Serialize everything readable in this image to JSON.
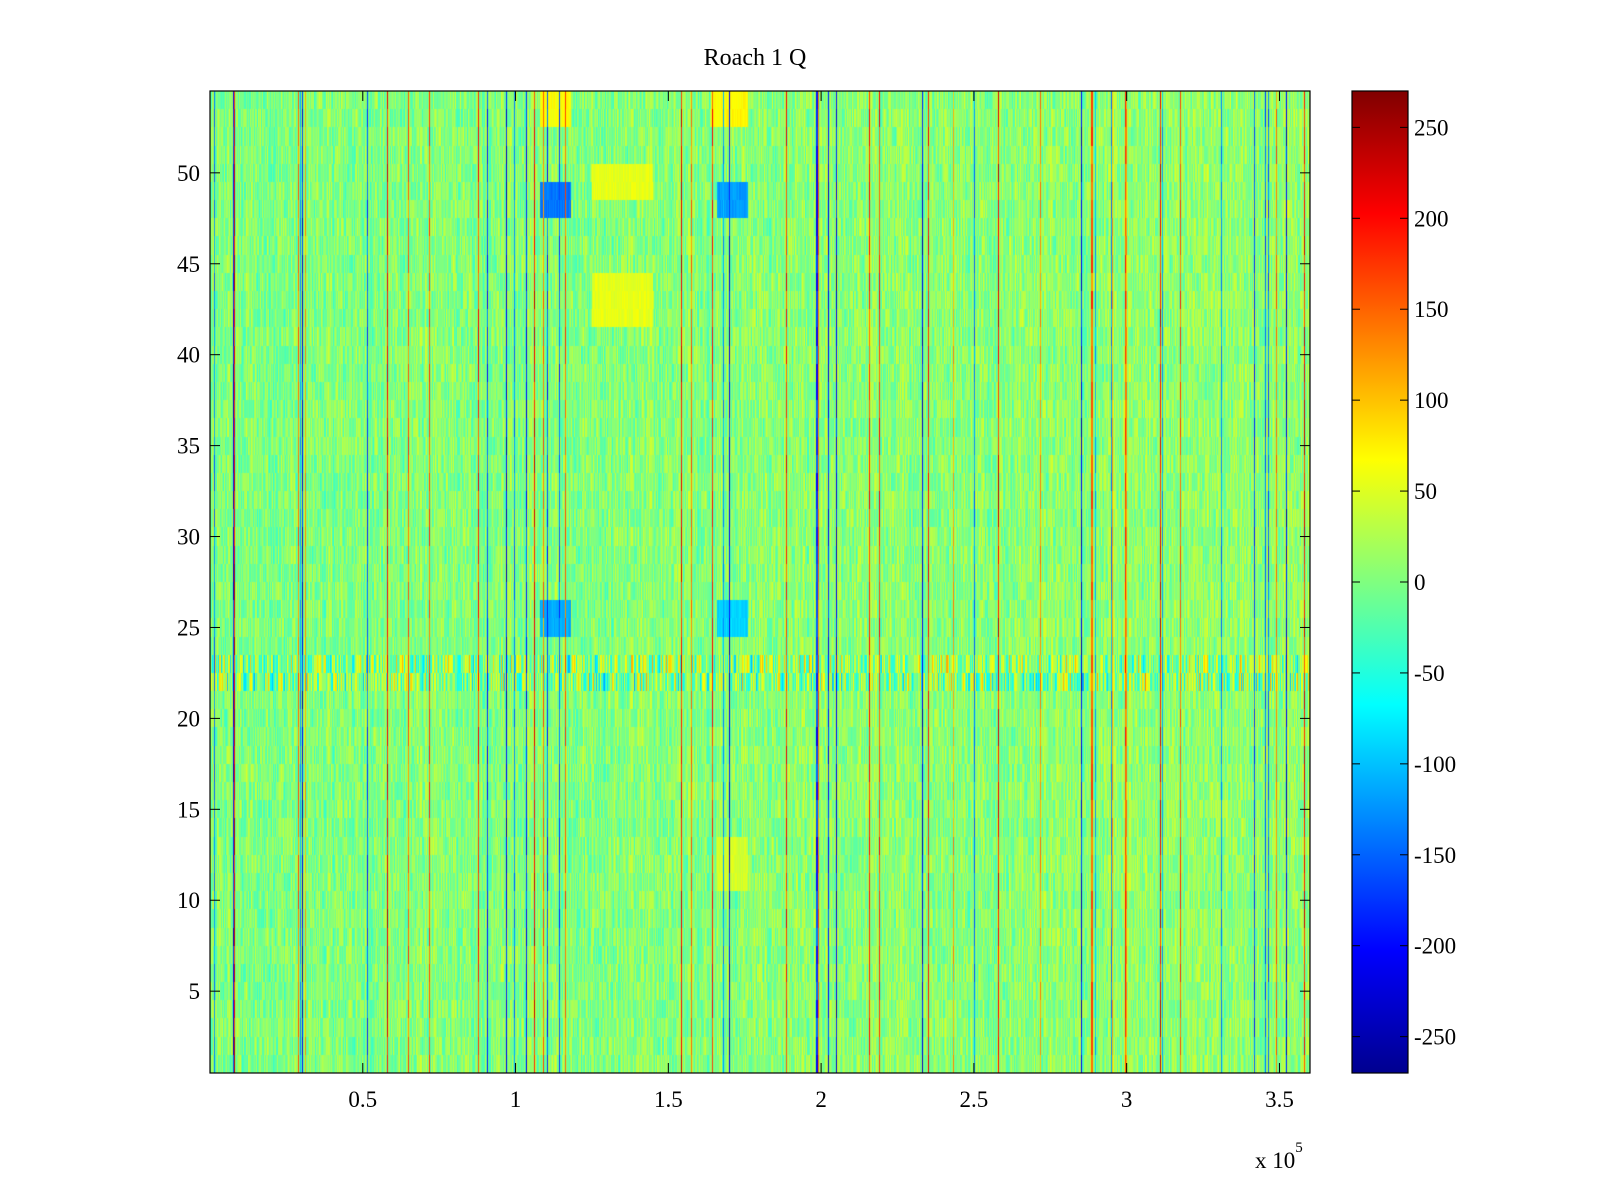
{
  "chart_data": {
    "type": "heatmap",
    "title": "Roach 1 Q",
    "xlabel": "",
    "ylabel": "",
    "x_exponent_label": {
      "base": "x 10",
      "exponent": "5"
    },
    "x_range": [
      0,
      360000
    ],
    "y_range": [
      0.5,
      54.5
    ],
    "rows": 54,
    "x_ticks": [
      {
        "value": 50000,
        "label": "0.5"
      },
      {
        "value": 100000,
        "label": "1"
      },
      {
        "value": 150000,
        "label": "1.5"
      },
      {
        "value": 200000,
        "label": "2"
      },
      {
        "value": 250000,
        "label": "2.5"
      },
      {
        "value": 300000,
        "label": "3"
      },
      {
        "value": 350000,
        "label": "3.5"
      }
    ],
    "y_ticks": [
      {
        "value": 5,
        "label": "5"
      },
      {
        "value": 10,
        "label": "10"
      },
      {
        "value": 15,
        "label": "15"
      },
      {
        "value": 20,
        "label": "20"
      },
      {
        "value": 25,
        "label": "25"
      },
      {
        "value": 30,
        "label": "30"
      },
      {
        "value": 35,
        "label": "35"
      },
      {
        "value": 40,
        "label": "40"
      },
      {
        "value": 45,
        "label": "45"
      },
      {
        "value": 50,
        "label": "50"
      }
    ],
    "colorbar": {
      "colormap": "jet",
      "range": [
        -270,
        270
      ],
      "ticks": [
        {
          "value": 250,
          "label": "250"
        },
        {
          "value": 200,
          "label": "200"
        },
        {
          "value": 150,
          "label": "150"
        },
        {
          "value": 100,
          "label": "100"
        },
        {
          "value": 50,
          "label": "50"
        },
        {
          "value": 0,
          "label": "0"
        },
        {
          "value": -50,
          "label": "-50"
        },
        {
          "value": -100,
          "label": "-100"
        },
        {
          "value": -150,
          "label": "-150"
        },
        {
          "value": -200,
          "label": "-200"
        },
        {
          "value": -250,
          "label": "-250"
        }
      ]
    },
    "typical_value_range": [
      -40,
      40
    ],
    "positive_spike_columns_x": [
      8000,
      58000,
      106000,
      154000,
      236000,
      258000,
      311000,
      358000
    ],
    "negative_spike_columns_x": [
      30000,
      97000,
      170000,
      205000,
      233000,
      285000,
      352000
    ],
    "features": [
      {
        "x_range": [
          108000,
          118000
        ],
        "y_range": [
          47.5,
          49.5
        ],
        "value": -140
      },
      {
        "x_range": [
          108000,
          118000
        ],
        "y_range": [
          24.5,
          26.5
        ],
        "value": -110
      },
      {
        "x_range": [
          166000,
          176000
        ],
        "y_range": [
          47.5,
          49.5
        ],
        "value": -120
      },
      {
        "x_range": [
          166000,
          176000
        ],
        "y_range": [
          24.5,
          26.5
        ],
        "value": -90
      },
      {
        "x_range": [
          125000,
          145000
        ],
        "y_range": [
          41.5,
          44.5
        ],
        "value": 55
      },
      {
        "x_range": [
          125000,
          145000
        ],
        "y_range": [
          48.5,
          50.5
        ],
        "value": 55
      },
      {
        "x_range": [
          108000,
          118000
        ],
        "y_range": [
          52.5,
          54.5
        ],
        "value": 65
      },
      {
        "x_range": [
          164000,
          176000
        ],
        "y_range": [
          52.5,
          54.5
        ],
        "value": 70
      },
      {
        "x_range": [
          166000,
          176000
        ],
        "y_range": [
          10.5,
          13.5
        ],
        "value": 45
      }
    ],
    "noisy_band_rows": [
      21.5,
      23.5
    ]
  }
}
